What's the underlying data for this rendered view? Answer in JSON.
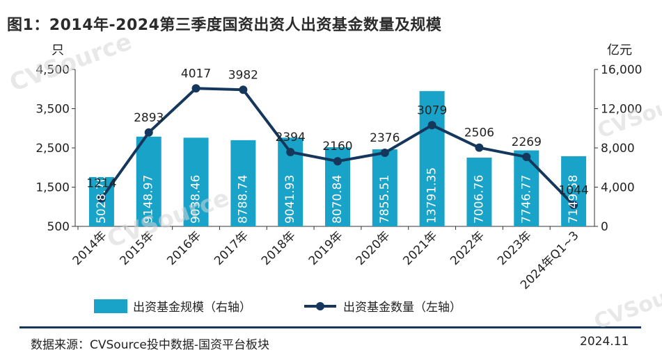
{
  "title": "图1：2014年-2024第三季度国资出资人出资基金数量及规模",
  "left_unit": "只",
  "right_unit": "亿元",
  "legend": {
    "bar_label": "出资基金规模（右轴）",
    "line_label": "出资基金数量（左轴）"
  },
  "footer": {
    "source": "数据来源：CVSource投中数据-国资平台板块",
    "date": "2024.11"
  },
  "watermark": "CVSource",
  "colors": {
    "bar": "#1aa3c9",
    "line": "#15375c"
  },
  "chart_data": {
    "type": "bar",
    "categories": [
      "2014年",
      "2015年",
      "2016年",
      "2017年",
      "2018年",
      "2019年",
      "2020年",
      "2021年",
      "2022年",
      "2023年",
      "2024年Q1~3"
    ],
    "series": [
      {
        "name": "出资基金规模（右轴）",
        "type": "bar",
        "axis": "right",
        "values": [
          5028.7,
          9148.97,
          9038.46,
          8788.74,
          9041.93,
          8070.84,
          7855.51,
          13791.35,
          7006.76,
          7746.77,
          7149.58
        ],
        "labels": [
          "5028.70",
          "9148.97",
          "9038.46",
          "8788.74",
          "9041.93",
          "8070.84",
          "7855.51",
          "13791.35",
          "7006.76",
          "7746.77",
          "7149.58"
        ]
      },
      {
        "name": "出资基金数量（左轴）",
        "type": "line",
        "axis": "left",
        "values": [
          1214,
          2893,
          4017,
          3982,
          2394,
          2160,
          2376,
          3079,
          2506,
          2269,
          1044
        ],
        "labels": [
          "1214",
          "2893",
          "4017",
          "3982",
          "2394",
          "2160",
          "2376",
          "3079",
          "2506",
          "2269",
          "1044"
        ]
      }
    ],
    "left_axis": {
      "ylim": [
        500,
        4500
      ],
      "ticks": [
        "500",
        "1,500",
        "2,500",
        "3,500",
        "4,500"
      ],
      "tick_values": [
        500,
        1500,
        2500,
        3500,
        4500
      ]
    },
    "right_axis": {
      "ylim": [
        0,
        16000
      ],
      "ticks": [
        "0",
        "4,000",
        "8,000",
        "12,000",
        "16,000"
      ],
      "tick_values": [
        0,
        4000,
        8000,
        12000,
        16000
      ]
    },
    "grid": false,
    "legend_position": "bottom"
  }
}
